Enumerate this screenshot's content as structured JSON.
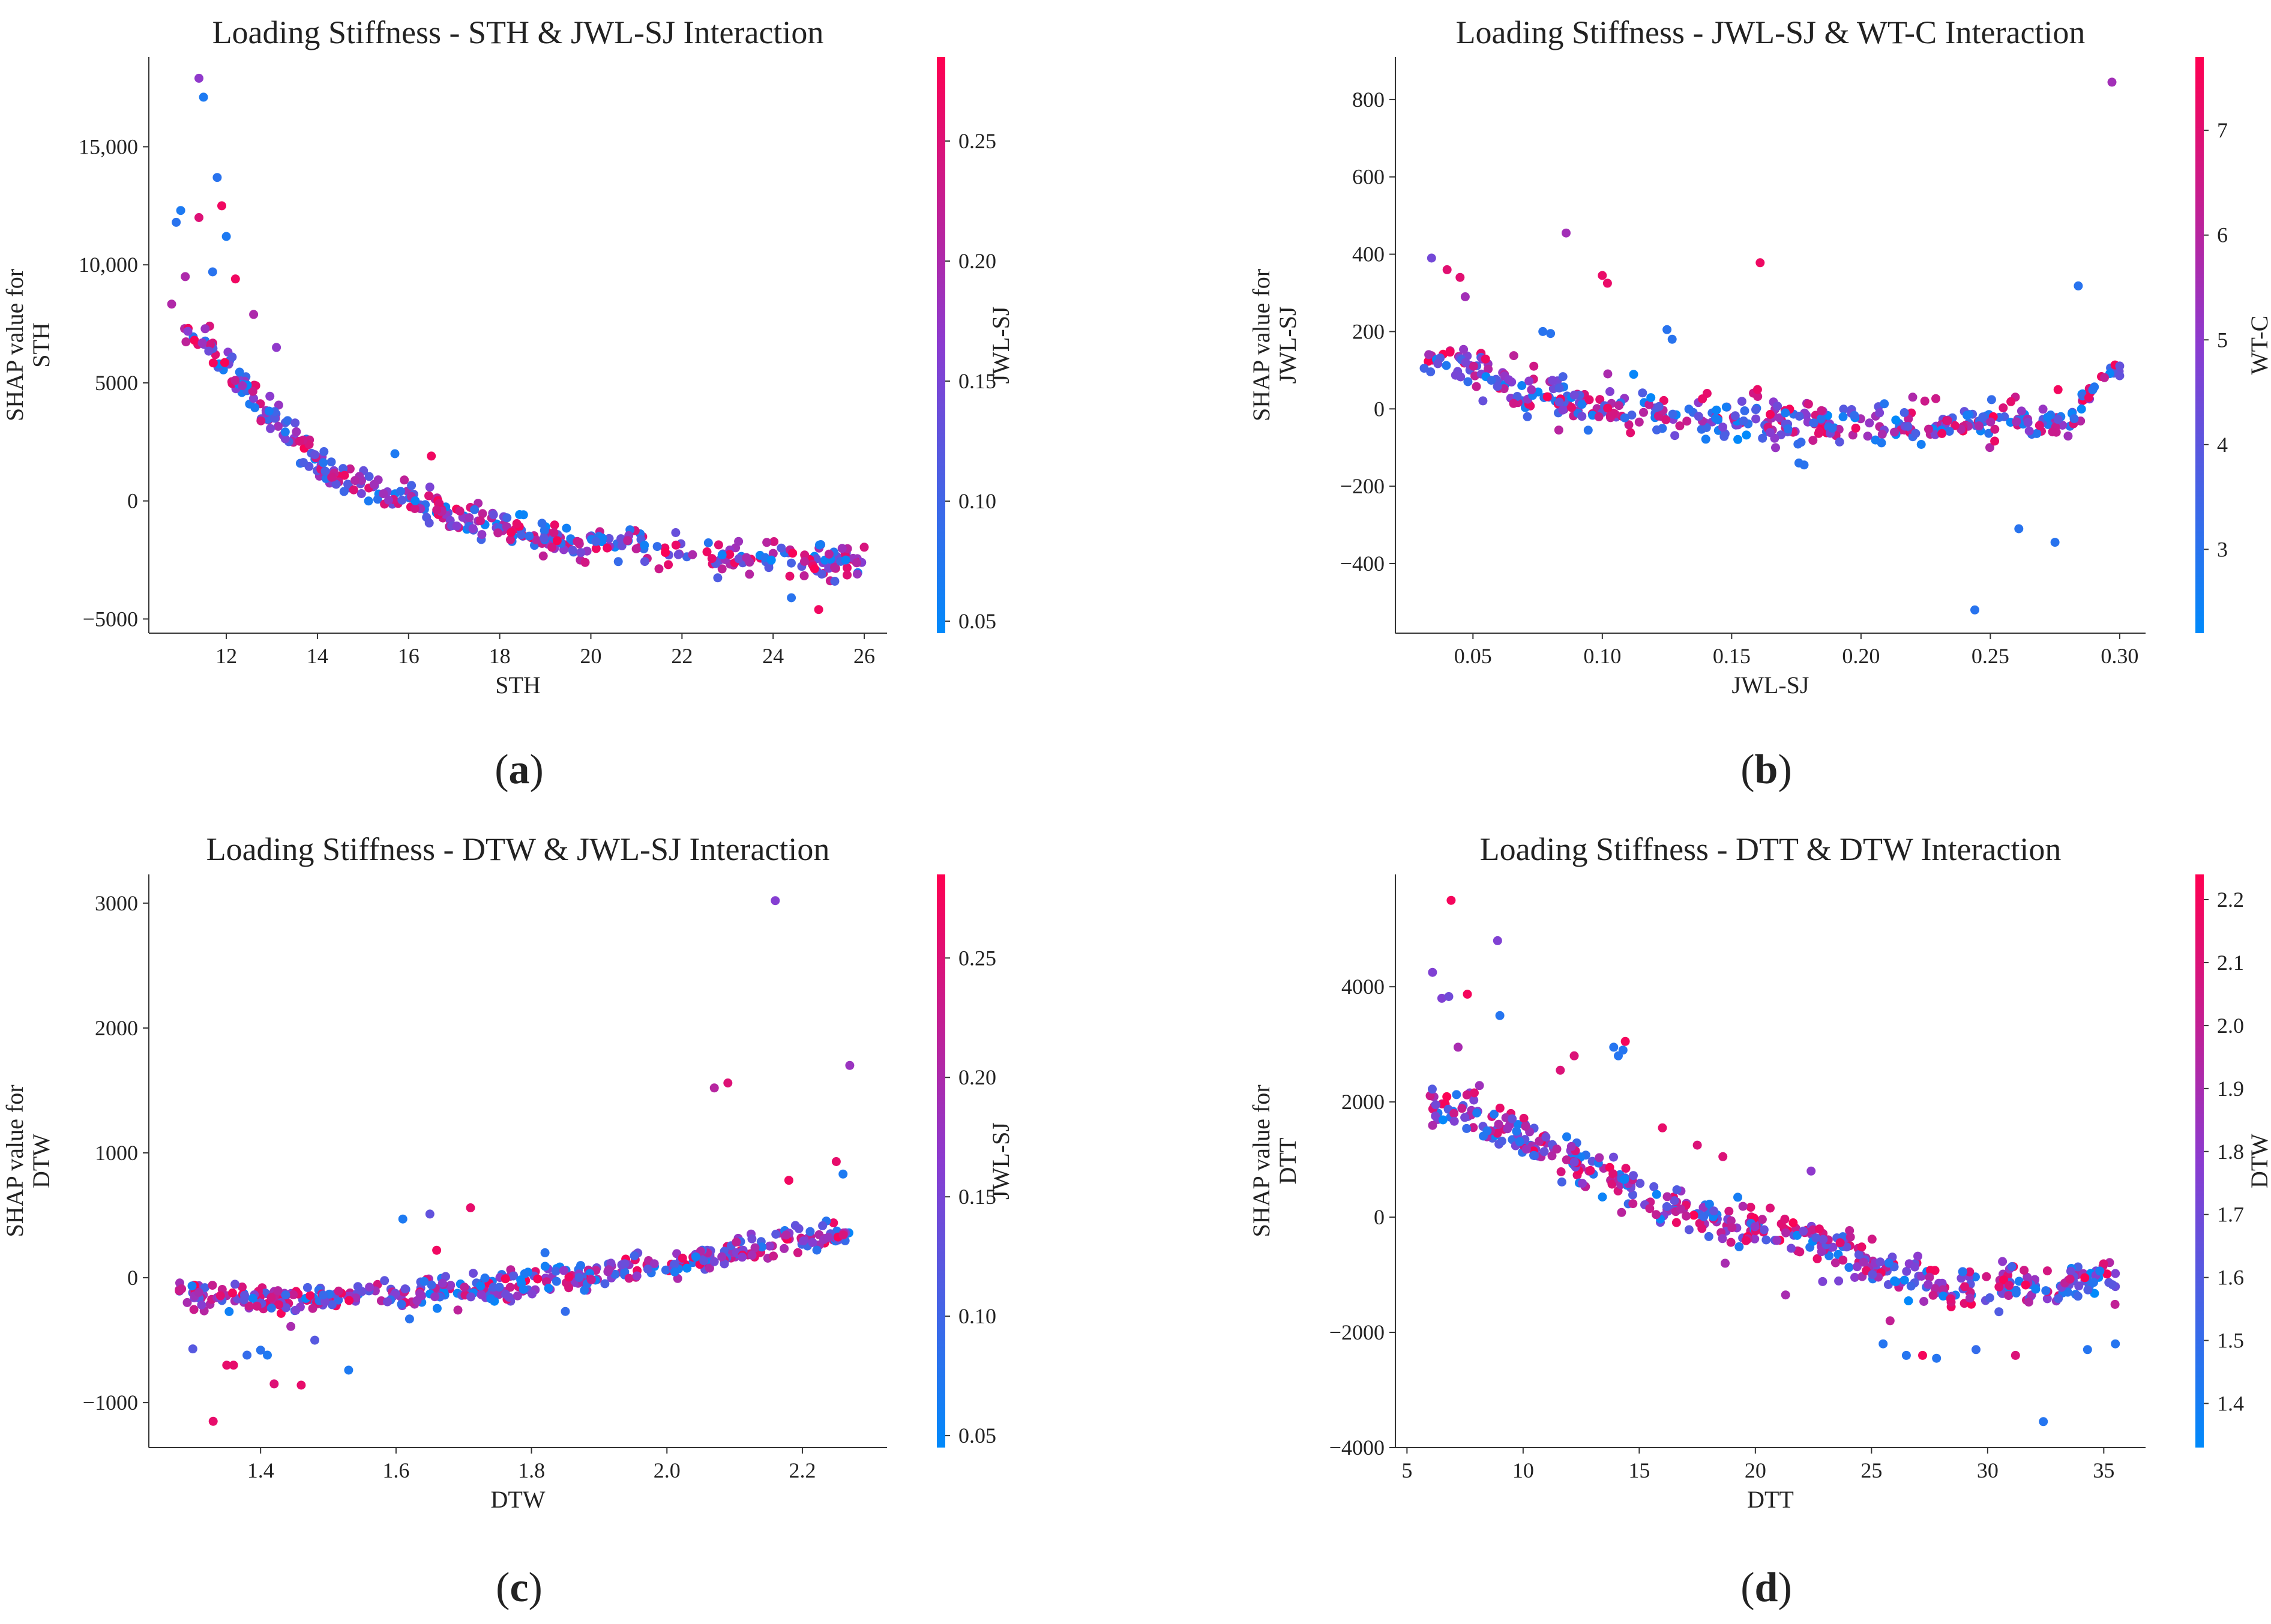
{
  "chart_data": [
    {
      "type": "scatter",
      "panel": "(a)",
      "title": "Loading Stiffness - STH & JWL-SJ Interaction",
      "xlabel": "STH",
      "ylabel": "SHAP value for\nSTH",
      "xlim": [
        10.3,
        26.5
      ],
      "ylim": [
        -5600,
        18800
      ],
      "xticks": [
        12,
        14,
        16,
        18,
        20,
        22,
        24,
        26
      ],
      "xtick_labels": [
        "12",
        "14",
        "16",
        "18",
        "20",
        "22",
        "24",
        "26"
      ],
      "yticks": [
        -5000,
        0,
        5000,
        10000,
        15000
      ],
      "ytick_labels": [
        "−5000",
        "0",
        "5000",
        "10,000",
        "15,000"
      ],
      "colorbar": {
        "label": "JWL-SJ",
        "range": [
          0.045,
          0.285
        ],
        "ticks": [
          0.05,
          0.1,
          0.15,
          0.2,
          0.25
        ],
        "tick_labels": [
          "0.05",
          "0.10",
          "0.15",
          "0.20",
          "0.25"
        ]
      },
      "trend": {
        "x": [
          10.8,
          11.5,
          12.5,
          13.5,
          14.5,
          16,
          17.5,
          19,
          21,
          23,
          24.5,
          26
        ],
        "y": [
          7800,
          6800,
          4600,
          2600,
          800,
          0,
          -800,
          -1700,
          -1900,
          -2300,
          -2600,
          -2600
        ]
      },
      "n_points": 420,
      "noise": [
        0.16,
        280
      ],
      "outliers": [
        {
          "x": 11.4,
          "y": 17900,
          "c": 0.17
        },
        {
          "x": 11.5,
          "y": 17100,
          "c": 0.07
        },
        {
          "x": 10.9,
          "y": 11800,
          "c": 0.08
        },
        {
          "x": 11.0,
          "y": 12300,
          "c": 0.07
        },
        {
          "x": 11.8,
          "y": 13700,
          "c": 0.08
        },
        {
          "x": 12.0,
          "y": 11200,
          "c": 0.07
        },
        {
          "x": 11.9,
          "y": 12500,
          "c": 0.27
        },
        {
          "x": 11.4,
          "y": 12000,
          "c": 0.25
        },
        {
          "x": 11.7,
          "y": 9700,
          "c": 0.08
        },
        {
          "x": 12.2,
          "y": 9400,
          "c": 0.27
        },
        {
          "x": 11.1,
          "y": 9500,
          "c": 0.2
        },
        {
          "x": 12.6,
          "y": 7900,
          "c": 0.2
        },
        {
          "x": 13.1,
          "y": 6500,
          "c": 0.17
        },
        {
          "x": 16.5,
          "y": 1900,
          "c": 0.27
        },
        {
          "x": 15.7,
          "y": 2000,
          "c": 0.07
        },
        {
          "x": 25.0,
          "y": -4600,
          "c": 0.27
        },
        {
          "x": 24.4,
          "y": -4100,
          "c": 0.08
        },
        {
          "x": 21.7,
          "y": -2700,
          "c": 0.26
        }
      ],
      "caption": "(a)"
    },
    {
      "type": "scatter",
      "panel": "(b)",
      "title": "Loading Stiffness - JWL-SJ & WT-C Interaction",
      "xlabel": "JWL-SJ",
      "ylabel": "SHAP value for\nJWL-SJ",
      "xlim": [
        0.02,
        0.31
      ],
      "ylim": [
        -580,
        910
      ],
      "xticks": [
        0.05,
        0.1,
        0.15,
        0.2,
        0.25,
        0.3
      ],
      "xtick_labels": [
        "0.05",
        "0.10",
        "0.15",
        "0.20",
        "0.25",
        "0.30"
      ],
      "yticks": [
        -400,
        -200,
        0,
        200,
        400,
        600,
        800
      ],
      "ytick_labels": [
        "−400",
        "−200",
        "0",
        "200",
        "400",
        "600",
        "800"
      ],
      "colorbar": {
        "label": "WT-C",
        "range": [
          2.2,
          7.7
        ],
        "ticks": [
          3,
          4,
          5,
          6,
          7
        ],
        "tick_labels": [
          "3",
          "4",
          "5",
          "6",
          "7"
        ]
      },
      "trend": {
        "x": [
          0.03,
          0.05,
          0.07,
          0.09,
          0.12,
          0.16,
          0.2,
          0.25,
          0.28,
          0.29,
          0.3
        ],
        "y": [
          130,
          110,
          40,
          10,
          -10,
          -30,
          -40,
          -40,
          -30,
          60,
          100
        ]
      },
      "n_points": 420,
      "noise": [
        0.0015,
        22
      ],
      "outliers": [
        {
          "x": 0.297,
          "y": 845,
          "c": 5.5
        },
        {
          "x": 0.086,
          "y": 455,
          "c": 5.5
        },
        {
          "x": 0.034,
          "y": 390,
          "c": 4.5
        },
        {
          "x": 0.04,
          "y": 360,
          "c": 7.0
        },
        {
          "x": 0.045,
          "y": 340,
          "c": 7.0
        },
        {
          "x": 0.1,
          "y": 345,
          "c": 7.2
        },
        {
          "x": 0.102,
          "y": 325,
          "c": 7.2
        },
        {
          "x": 0.161,
          "y": 378,
          "c": 7.3
        },
        {
          "x": 0.047,
          "y": 290,
          "c": 5.5
        },
        {
          "x": 0.284,
          "y": 318,
          "c": 3.0
        },
        {
          "x": 0.125,
          "y": 205,
          "c": 3.0
        },
        {
          "x": 0.127,
          "y": 180,
          "c": 3.0
        },
        {
          "x": 0.077,
          "y": 200,
          "c": 3.0
        },
        {
          "x": 0.08,
          "y": 195,
          "c": 3.0
        },
        {
          "x": 0.244,
          "y": -520,
          "c": 3.0
        },
        {
          "x": 0.261,
          "y": -310,
          "c": 3.0
        },
        {
          "x": 0.275,
          "y": -345,
          "c": 3.0
        },
        {
          "x": 0.176,
          "y": -140,
          "c": 3.0
        },
        {
          "x": 0.178,
          "y": -145,
          "c": 3.0
        },
        {
          "x": 0.16,
          "y": 50,
          "c": 7.2
        }
      ],
      "caption": "(b)"
    },
    {
      "type": "scatter",
      "panel": "(c)",
      "title": "Loading Stiffness - DTW & JWL-SJ Interaction",
      "xlabel": "DTW",
      "ylabel": "SHAP value for\nDTW",
      "xlim": [
        1.235,
        2.325
      ],
      "ylim": [
        -1360,
        3230
      ],
      "xticks": [
        1.4,
        1.6,
        1.8,
        2.0,
        2.2
      ],
      "xtick_labels": [
        "1.4",
        "1.6",
        "1.8",
        "2.0",
        "2.2"
      ],
      "yticks": [
        -1000,
        0,
        1000,
        2000,
        3000
      ],
      "ytick_labels": [
        "−1000",
        "0",
        "1000",
        "2000",
        "3000"
      ],
      "colorbar": {
        "label": "JWL-SJ",
        "range": [
          0.045,
          0.285
        ],
        "ticks": [
          0.05,
          0.1,
          0.15,
          0.2,
          0.25
        ],
        "tick_labels": [
          "0.05",
          "0.10",
          "0.15",
          "0.20",
          "0.25"
        ]
      },
      "trend": {
        "x": [
          1.28,
          1.4,
          1.5,
          1.6,
          1.7,
          1.8,
          1.9,
          2.0,
          2.1,
          2.2,
          2.27
        ],
        "y": [
          -140,
          -170,
          -160,
          -120,
          -80,
          -20,
          40,
          90,
          200,
          300,
          360
        ]
      },
      "n_points": 440,
      "noise": [
        0.004,
        45
      ],
      "outliers": [
        {
          "x": 2.16,
          "y": 3020,
          "c": 0.16
        },
        {
          "x": 2.27,
          "y": 1700,
          "c": 0.18
        },
        {
          "x": 2.07,
          "y": 1520,
          "c": 0.21
        },
        {
          "x": 2.09,
          "y": 1560,
          "c": 0.25
        },
        {
          "x": 1.33,
          "y": -1150,
          "c": 0.26
        },
        {
          "x": 1.35,
          "y": -700,
          "c": 0.26
        },
        {
          "x": 1.36,
          "y": -700,
          "c": 0.26
        },
        {
          "x": 1.42,
          "y": -850,
          "c": 0.25
        },
        {
          "x": 1.46,
          "y": -860,
          "c": 0.26
        },
        {
          "x": 1.53,
          "y": -740,
          "c": 0.07
        },
        {
          "x": 1.41,
          "y": -620,
          "c": 0.07
        },
        {
          "x": 1.4,
          "y": -580,
          "c": 0.08
        },
        {
          "x": 1.38,
          "y": -620,
          "c": 0.09
        },
        {
          "x": 1.61,
          "y": 470,
          "c": 0.07
        },
        {
          "x": 1.65,
          "y": 510,
          "c": 0.13
        },
        {
          "x": 1.71,
          "y": 560,
          "c": 0.26
        },
        {
          "x": 1.66,
          "y": 220,
          "c": 0.27
        },
        {
          "x": 1.82,
          "y": 200,
          "c": 0.08
        },
        {
          "x": 2.25,
          "y": 930,
          "c": 0.26
        },
        {
          "x": 2.26,
          "y": 830,
          "c": 0.07
        },
        {
          "x": 2.18,
          "y": 780,
          "c": 0.27
        },
        {
          "x": 1.3,
          "y": -570,
          "c": 0.12
        },
        {
          "x": 1.48,
          "y": -500,
          "c": 0.12
        },
        {
          "x": 1.62,
          "y": -330,
          "c": 0.08
        },
        {
          "x": 1.85,
          "y": -270,
          "c": 0.09
        }
      ],
      "caption": "(c)"
    },
    {
      "type": "scatter",
      "panel": "(d)",
      "title": "Loading Stiffness - DTT & DTW Interaction",
      "xlabel": "DTT",
      "ylabel": "SHAP value for\nDTT",
      "xlim": [
        4.5,
        36.8
      ],
      "ylim": [
        -4000,
        5950
      ],
      "xticks": [
        5,
        10,
        15,
        20,
        25,
        30,
        35
      ],
      "xtick_labels": [
        "5",
        "10",
        "15",
        "20",
        "25",
        "30",
        "35"
      ],
      "yticks": [
        -4000,
        -2000,
        0,
        2000,
        4000
      ],
      "ytick_labels": [
        "−4000",
        "−2000",
        "0",
        "2000",
        "4000"
      ],
      "colorbar": {
        "label": "DTW",
        "range": [
          1.33,
          2.24
        ],
        "ticks": [
          1.4,
          1.5,
          1.6,
          1.7,
          1.8,
          1.9,
          2.0,
          2.1,
          2.2
        ],
        "tick_labels": [
          "1.4",
          "1.5",
          "1.6",
          "1.7",
          "1.8",
          "1.9",
          "2.0",
          "2.1",
          "2.2"
        ]
      },
      "trend": {
        "x": [
          6,
          8,
          10,
          12,
          14,
          16,
          18,
          20,
          22,
          24,
          26,
          28,
          30,
          33,
          35.5
        ],
        "y": [
          2000,
          1700,
          1400,
          1000,
          600,
          200,
          0,
          -200,
          -400,
          -600,
          -1000,
          -1200,
          -1200,
          -1200,
          -1100
        ]
      },
      "n_points": 460,
      "noise": [
        0.35,
        160
      ],
      "outliers": [
        {
          "x": 6.9,
          "y": 5500,
          "c": 2.2
        },
        {
          "x": 8.9,
          "y": 4800,
          "c": 1.75
        },
        {
          "x": 6.1,
          "y": 4250,
          "c": 1.75
        },
        {
          "x": 6.5,
          "y": 3800,
          "c": 1.75
        },
        {
          "x": 6.8,
          "y": 3830,
          "c": 1.7
        },
        {
          "x": 7.6,
          "y": 3870,
          "c": 2.2
        },
        {
          "x": 9.0,
          "y": 3500,
          "c": 1.45
        },
        {
          "x": 7.2,
          "y": 2950,
          "c": 1.9
        },
        {
          "x": 14.4,
          "y": 3050,
          "c": 2.2
        },
        {
          "x": 13.9,
          "y": 2950,
          "c": 1.45
        },
        {
          "x": 14.1,
          "y": 2800,
          "c": 1.45
        },
        {
          "x": 14.3,
          "y": 2900,
          "c": 1.45
        },
        {
          "x": 12.2,
          "y": 2800,
          "c": 2.1
        },
        {
          "x": 11.6,
          "y": 2550,
          "c": 2.1
        },
        {
          "x": 16.0,
          "y": 1550,
          "c": 2.15
        },
        {
          "x": 17.5,
          "y": 1250,
          "c": 2.1
        },
        {
          "x": 18.6,
          "y": 1050,
          "c": 2.1
        },
        {
          "x": 22.4,
          "y": 800,
          "c": 1.8
        },
        {
          "x": 21.3,
          "y": -1350,
          "c": 1.9
        },
        {
          "x": 18.7,
          "y": -800,
          "c": 1.9
        },
        {
          "x": 32.4,
          "y": -3550,
          "c": 1.45
        },
        {
          "x": 27.2,
          "y": -2400,
          "c": 2.2
        },
        {
          "x": 27.8,
          "y": -2450,
          "c": 1.45
        },
        {
          "x": 26.5,
          "y": -2400,
          "c": 1.45
        },
        {
          "x": 29.5,
          "y": -2300,
          "c": 1.5
        },
        {
          "x": 31.2,
          "y": -2400,
          "c": 2.1
        },
        {
          "x": 34.3,
          "y": -2300,
          "c": 1.45
        },
        {
          "x": 35.5,
          "y": -2200,
          "c": 1.45
        },
        {
          "x": 25.8,
          "y": -1800,
          "c": 2.0
        },
        {
          "x": 25.5,
          "y": -2200,
          "c": 1.45
        }
      ],
      "caption": "(d)"
    }
  ]
}
